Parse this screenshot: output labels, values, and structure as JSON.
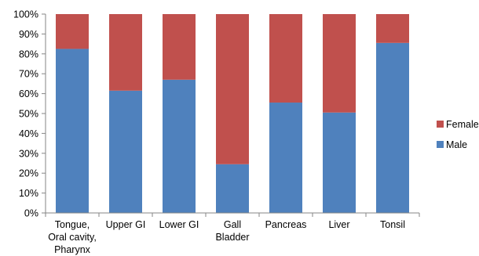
{
  "chart_data": {
    "type": "bar",
    "stacked": true,
    "percent_stacked": true,
    "categories": [
      [
        "Tongue,",
        "Oral cavity,",
        "Pharynx"
      ],
      [
        "Upper GI"
      ],
      [
        "Lower GI"
      ],
      [
        "Gall",
        "Bladder"
      ],
      [
        "Pancreas"
      ],
      [
        "Liver"
      ],
      [
        "Tonsil"
      ]
    ],
    "series": [
      {
        "name": "Male",
        "color": "#4F81BD",
        "values": [
          82.5,
          61.5,
          67,
          24.5,
          55.5,
          50.5,
          85.5
        ]
      },
      {
        "name": "Female",
        "color": "#C0504D",
        "values": [
          17.5,
          38.5,
          33,
          75.5,
          44.5,
          49.5,
          14.5
        ]
      }
    ],
    "ylim": [
      0,
      100
    ],
    "yticks": [
      "0%",
      "10%",
      "20%",
      "30%",
      "40%",
      "50%",
      "60%",
      "70%",
      "80%",
      "90%",
      "100%"
    ],
    "grid": false,
    "legend_position": "right",
    "legend_order": [
      "Female",
      "Male"
    ],
    "title": "",
    "xlabel": "",
    "ylabel": ""
  }
}
